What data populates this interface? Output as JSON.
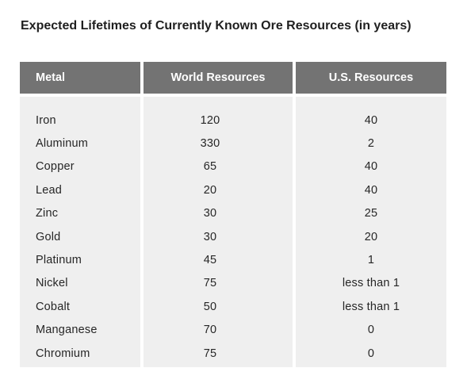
{
  "title": "Expected Lifetimes of Currently Known Ore Resources (in years)",
  "table": {
    "headers": {
      "metal": "Metal",
      "world": "World Resources",
      "us": "U.S. Resources"
    },
    "rows": [
      {
        "metal": "Iron",
        "world": "120",
        "us": "40"
      },
      {
        "metal": "Aluminum",
        "world": "330",
        "us": "2"
      },
      {
        "metal": "Copper",
        "world": "65",
        "us": "40"
      },
      {
        "metal": "Lead",
        "world": "20",
        "us": "40"
      },
      {
        "metal": "Zinc",
        "world": "30",
        "us": "25"
      },
      {
        "metal": "Gold",
        "world": "30",
        "us": "20"
      },
      {
        "metal": "Platinum",
        "world": "45",
        "us": "1"
      },
      {
        "metal": "Nickel",
        "world": "75",
        "us": "less than 1"
      },
      {
        "metal": "Cobalt",
        "world": "50",
        "us": "less than 1"
      },
      {
        "metal": "Manganese",
        "world": "70",
        "us": "0"
      },
      {
        "metal": "Chromium",
        "world": "75",
        "us": "0"
      }
    ]
  },
  "colors": {
    "header_bg": "#737373",
    "header_text": "#ffffff",
    "body_bg": "#efefef"
  }
}
